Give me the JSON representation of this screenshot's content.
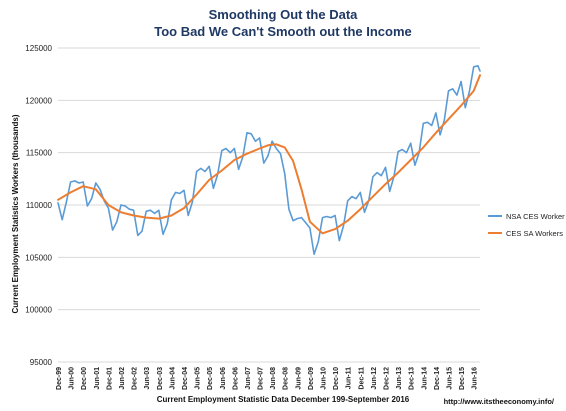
{
  "chart_data": {
    "type": "line",
    "title": "Smoothing Out the Data",
    "subtitle": "Too Bad We Can't Smooth out the Income",
    "xlabel": "Current Employment Statistic Data December 199-September 2016",
    "ylabel": "Current Employment Statistics Workers (thousands)",
    "ylim": [
      95000,
      125000
    ],
    "yticks": [
      "95000",
      "100000",
      "105000",
      "110000",
      "115000",
      "120000",
      "125000"
    ],
    "xticks": [
      "Dec-99",
      "Jun-00",
      "Dec-00",
      "Jun-01",
      "Dec-01",
      "Jun-02",
      "Dec-02",
      "Jun-03",
      "Dec-03",
      "Jun-04",
      "Dec-04",
      "Jun-05",
      "Dec-05",
      "Jun-06",
      "Dec-06",
      "Jun-07",
      "Dec-07",
      "Jun-08",
      "Dec-08",
      "Jun-09",
      "Dec-09",
      "Jun-10",
      "Dec-10",
      "Jun-11",
      "Dec-11",
      "Jun-12",
      "Dec-12",
      "Jun-13",
      "Dec-13",
      "Jun-14",
      "Dec-14",
      "Jun-15",
      "Dec-15",
      "Jun-16"
    ],
    "grid": "horizontal",
    "legend_position": "right",
    "annotation": "http://www.itstheeconomy.info/",
    "series": [
      {
        "name": "NSA CES Worker",
        "color": "#5b9bd5",
        "x": [
          0,
          2,
          4,
          6,
          8,
          10,
          12,
          14,
          16,
          18,
          20,
          22,
          24,
          26,
          28,
          30,
          32,
          34,
          36,
          38,
          40,
          42,
          44,
          46,
          48,
          50,
          52,
          54,
          56,
          58,
          60,
          62,
          64,
          66,
          68,
          70,
          72,
          74,
          76,
          78,
          80,
          82,
          84,
          86,
          88,
          90,
          92,
          94,
          96,
          98,
          100,
          102,
          104,
          106,
          108,
          110,
          112,
          114,
          116,
          118,
          120,
          122,
          124,
          126,
          128,
          130,
          132,
          134,
          136,
          138,
          140,
          142,
          144,
          146,
          148,
          150,
          152,
          154,
          156,
          158,
          160,
          162,
          164,
          166,
          168,
          170,
          172,
          174,
          176,
          178,
          180,
          182,
          184,
          186,
          188,
          190,
          192,
          194,
          196,
          198,
          200,
          201
        ],
        "values": [
          110200,
          108600,
          110300,
          112200,
          112300,
          112100,
          112200,
          109900,
          110600,
          112100,
          111500,
          110400,
          109700,
          107600,
          108400,
          110000,
          109900,
          109600,
          109500,
          107100,
          107500,
          109400,
          109500,
          109200,
          109500,
          107200,
          108200,
          110500,
          111200,
          111100,
          111400,
          109000,
          110300,
          113200,
          113500,
          113200,
          113700,
          111600,
          112900,
          115200,
          115400,
          115000,
          115400,
          113400,
          114600,
          116900,
          116800,
          116100,
          116400,
          114000,
          114700,
          116100,
          115400,
          114900,
          113000,
          109600,
          108500,
          108700,
          108800,
          108300,
          107800,
          105300,
          106500,
          108800,
          108900,
          108800,
          109000,
          106600,
          108000,
          110400,
          110800,
          110600,
          111200,
          109300,
          110400,
          112700,
          113100,
          112800,
          113600,
          111300,
          112700,
          115100,
          115300,
          115000,
          115900,
          113800,
          115000,
          117800,
          117900,
          117600,
          118800,
          116700,
          118100,
          120900,
          121100,
          120500,
          121800,
          119300,
          120900,
          123200,
          123300,
          122800
        ]
      },
      {
        "name": "CES SA Workers",
        "color": "#ed7d31",
        "x": [
          0,
          6,
          12,
          18,
          24,
          30,
          36,
          42,
          48,
          54,
          60,
          66,
          72,
          78,
          84,
          90,
          96,
          100,
          104,
          108,
          112,
          116,
          120,
          126,
          132,
          138,
          144,
          150,
          156,
          162,
          168,
          174,
          180,
          186,
          192,
          198,
          201
        ],
        "values": [
          110500,
          111200,
          111800,
          111500,
          110000,
          109300,
          109000,
          108800,
          108700,
          109000,
          109700,
          111000,
          112400,
          113300,
          114300,
          114900,
          115400,
          115700,
          115800,
          115500,
          114200,
          111500,
          108400,
          107300,
          107700,
          108500,
          109600,
          110800,
          112000,
          113100,
          114300,
          115500,
          116900,
          118200,
          119500,
          120900,
          122400
        ]
      }
    ]
  }
}
